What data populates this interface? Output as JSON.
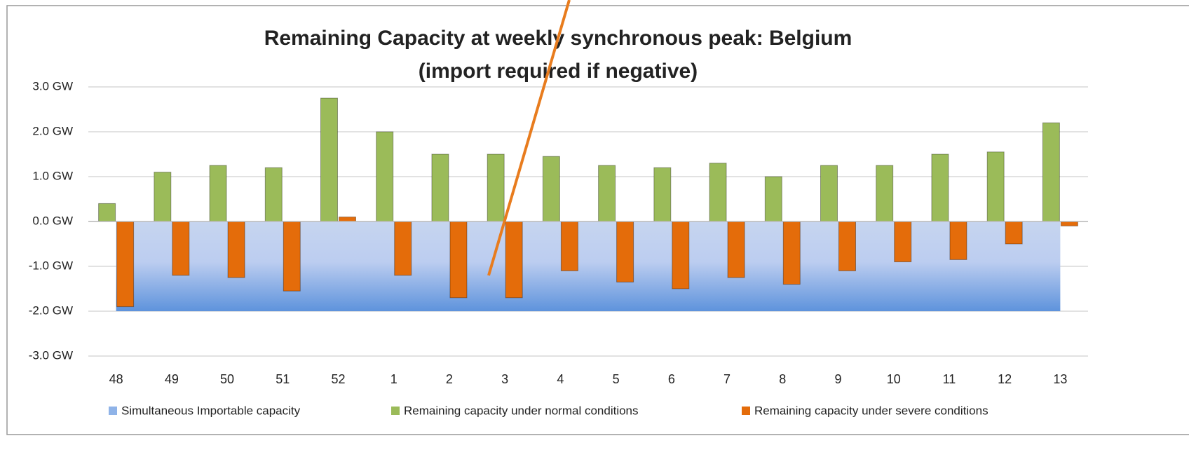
{
  "chart_data": {
    "type": "bar",
    "title": "Remaining Capacity at weekly synchronous peak: Belgium",
    "subtitle": "(import required if negative)",
    "categories": [
      "48",
      "49",
      "50",
      "51",
      "52",
      "1",
      "2",
      "3",
      "4",
      "5",
      "6",
      "7",
      "8",
      "9",
      "10",
      "11",
      "12",
      "13"
    ],
    "series": [
      {
        "name": "Simultaneous Importable capacity",
        "type": "area",
        "color": "#6f9ee0",
        "values": [
          -2.0,
          -2.0,
          -2.0,
          -2.0,
          -2.0,
          -2.0,
          -2.0,
          -2.0,
          -2.0,
          -2.0,
          -2.0,
          -2.0,
          -2.0,
          -2.0,
          -2.0,
          -2.0,
          -2.0,
          -2.0
        ]
      },
      {
        "name": "Remaining capacity under normal conditions",
        "type": "bar",
        "color": "#9bbb59",
        "values": [
          0.4,
          1.1,
          1.25,
          1.2,
          2.75,
          2.0,
          1.5,
          1.5,
          1.45,
          1.25,
          1.2,
          1.3,
          1.0,
          1.25,
          1.25,
          1.5,
          1.55,
          2.2
        ]
      },
      {
        "name": "Remaining capacity under severe conditions",
        "type": "bar",
        "color": "#e46c0a",
        "values": [
          -1.9,
          -1.2,
          -1.25,
          -1.55,
          0.1,
          -1.2,
          -1.7,
          -1.7,
          -1.1,
          -1.35,
          -1.5,
          -1.25,
          -1.4,
          -1.1,
          -0.9,
          -0.85,
          -0.5,
          -0.1
        ]
      }
    ],
    "ylim": [
      -3,
      3
    ],
    "yticks": [
      {
        "value": 3,
        "label": "3.0 GW"
      },
      {
        "value": 2,
        "label": "2.0 GW"
      },
      {
        "value": 1,
        "label": "1.0 GW"
      },
      {
        "value": 0,
        "label": "0.0 GW"
      },
      {
        "value": -1,
        "label": "-1.0 GW"
      },
      {
        "value": -2,
        "label": "-2.0 GW"
      },
      {
        "value": -3,
        "label": "-3.0 GW"
      }
    ],
    "grid": true,
    "legend": "bottom"
  }
}
